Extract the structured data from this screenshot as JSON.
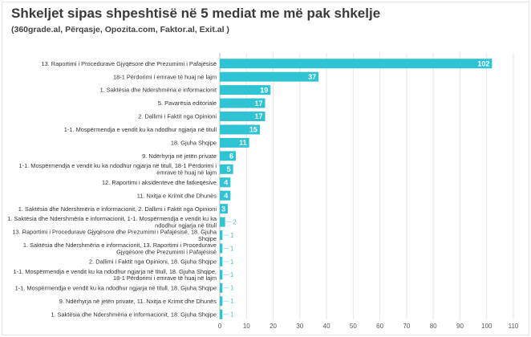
{
  "title": "Shkeljet sipas shpeshtisë në 5 mediat me më pak shkelje",
  "subtitle": "(360grade.al, Përqasje, Opozita.com, Faktor.al, Exit.al )",
  "colors": {
    "bar": "#2ec4d4",
    "grid": "#e6e6e6"
  },
  "chart_data": {
    "type": "bar",
    "orientation": "horizontal",
    "title": "Shkeljet sipas shpeshtisë në 5 mediat me më pak shkelje",
    "subtitle": "(360grade.al, Përqasje, Opozita.com, Faktor.al, Exit.al )",
    "xlim": [
      0,
      110
    ],
    "ticks": [
      0,
      10,
      20,
      30,
      40,
      50,
      60,
      70,
      80,
      90,
      100,
      110
    ],
    "grid": true,
    "categories": [
      [
        "13. Raportimi i Procedurave Gjyqësore dhe Prezumimi i Pafajësisë"
      ],
      [
        "18-1 Përdorimi i emrave të huaj në lajm"
      ],
      [
        "1. Saktësia dhe Ndershmëria e informacionit"
      ],
      [
        "5. Pavarësia editoriale"
      ],
      [
        "2. Dallimi i Faktit nga Opinioni"
      ],
      [
        "1-1. Mospërmendja e vendit ku ka ndodhur ngjarja në titull"
      ],
      [
        "18. Gjuha Shqipe"
      ],
      [
        "9. Ndërhyrja në jetën private"
      ],
      [
        "1-1. Mospërmendja e vendit ku ka ndodhur ngjarja në titull, 18-1 Përdorimi i",
        "emrave të huaj në lajm"
      ],
      [
        "12. Raportimi i aksidenteve dhe fatkeqësive"
      ],
      [
        "11. Nxitja e Krimit dhe Dhunës"
      ],
      [
        "1. Saktësia dhe Ndershmëria e informacionit, 2. Dallimi i Faktit nga Opinioni"
      ],
      [
        "1. Saktësia dhe Ndershmëria e informacionit, 1-1. Mospërmendja e vendit ku ka",
        "ndodhur ngjarja në titull"
      ],
      [
        "13. Raportimi i Procedurave Gjyqësore dhe Prezumimi i Pafajësisë, 18. Gjuha",
        "Shqipe"
      ],
      [
        "1. Saktësia dhe Ndershmëria e informacionit, 13. Raportimi i Procedurave",
        "Gjyqësore dhe Prezumimi i Pafajësisë"
      ],
      [
        "2. Dallimi i Faktit nga Opinioni, 18. Gjuha Shqipe"
      ],
      [
        "1-1. Mospërmendja e vendit ku ka ndodhur ngjarja në titull, 18. Gjuha Shqipe,",
        "18-1 Përdorimi i emrave të huaj në lajm"
      ],
      [
        "1-1. Mospërmendja e vendit ku ka ndodhur ngjarja në titull, 18. Gjuha Shqipe"
      ],
      [
        "9. Ndërhyrja në jetën private, 11. Nxitja e Krimit dhe Dhunës"
      ],
      [
        "1. Saktësia dhe Ndershmëria e informacionit, 18. Gjuha Shqipe"
      ]
    ],
    "values": [
      102,
      37,
      19,
      17,
      17,
      15,
      11,
      6,
      5,
      4,
      4,
      3,
      2,
      1,
      1,
      1,
      1,
      1,
      1,
      1
    ]
  }
}
